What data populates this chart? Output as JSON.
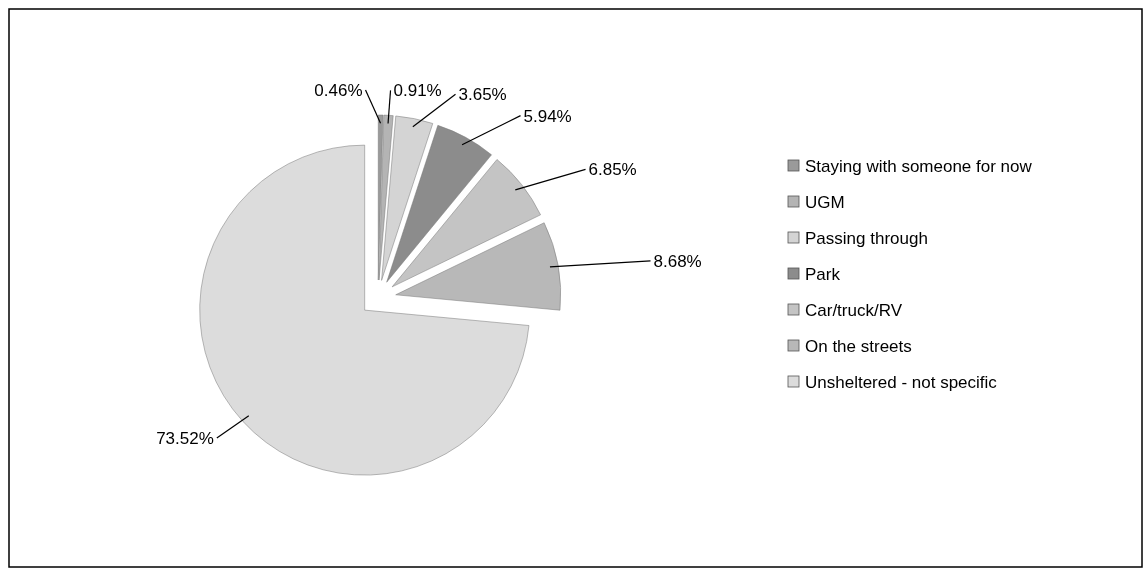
{
  "chart_data": {
    "type": "pie",
    "categories": [
      "Staying with someone for now",
      "UGM",
      "Passing through",
      "Park",
      "Car/truck/RV",
      "On the streets",
      "Unsheltered - not specific"
    ],
    "values": [
      0.46,
      0.91,
      3.65,
      5.94,
      6.85,
      8.68,
      73.52
    ],
    "value_labels": [
      "0.46%",
      "0.91%",
      "3.65%",
      "5.94%",
      "6.85%",
      "8.68%",
      "73.52%"
    ],
    "colors": [
      "#9a9a9a",
      "#b4b4b4",
      "#d4d4d4",
      "#8c8c8c",
      "#c4c4c4",
      "#b8b8b8",
      "#dcdcdc"
    ],
    "legend": "right"
  }
}
